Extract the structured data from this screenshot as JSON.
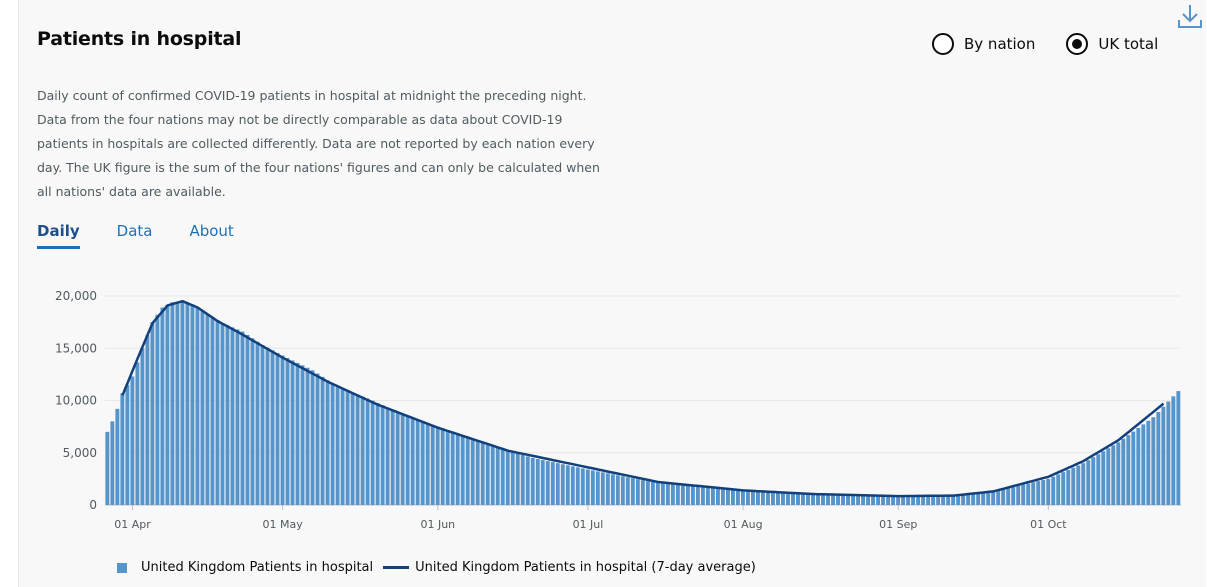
{
  "header": {
    "title": "Patients in hospital",
    "description": "Daily count of confirmed COVID-19 patients in hospital at midnight the preceding night. Data from the four nations may not be directly comparable as data about COVID-19 patients in hospitals are collected differently. Data are not reported by each nation every day. The UK figure is the sum of the four nations' figures and can only be calculated when all nations' data are available."
  },
  "radios": {
    "by_nation": "By nation",
    "uk_total": "UK total",
    "selected": "uk_total"
  },
  "tabs": [
    {
      "label": "Daily",
      "active": true
    },
    {
      "label": "Data",
      "active": false
    },
    {
      "label": "About",
      "active": false
    }
  ],
  "icons": {
    "download": "download-icon"
  },
  "colors": {
    "bar": "#5694ca",
    "line": "#12407c",
    "link": "#1d70b8",
    "grid": "#e8e8e8"
  },
  "chart_data": {
    "type": "bar",
    "start_date": "2020-03-27",
    "end_date": "2020-10-27",
    "ylim": [
      0,
      20000
    ],
    "y_ticks": [
      0,
      5000,
      10000,
      15000,
      20000
    ],
    "y_tick_labels": [
      "0",
      "5,000",
      "10,000",
      "15,000",
      "20,000"
    ],
    "x_ticks": [
      {
        "date": "2020-04-01",
        "label": "01 Apr"
      },
      {
        "date": "2020-05-01",
        "label": "01 May"
      },
      {
        "date": "2020-06-01",
        "label": "01 Jun"
      },
      {
        "date": "2020-07-01",
        "label": "01 Jul"
      },
      {
        "date": "2020-08-01",
        "label": "01 Aug"
      },
      {
        "date": "2020-09-01",
        "label": "01 Sep"
      },
      {
        "date": "2020-10-01",
        "label": "01 Oct"
      }
    ],
    "series": [
      {
        "name": "United Kingdom Patients in hospital",
        "kind": "bar",
        "anchors": [
          [
            "2020-03-27",
            7000
          ],
          [
            "2020-03-28",
            8000
          ],
          [
            "2020-03-29",
            9200
          ],
          [
            "2020-03-30",
            10700
          ],
          [
            "2020-04-01",
            12300
          ],
          [
            "2020-04-03",
            15000
          ],
          [
            "2020-04-05",
            17500
          ],
          [
            "2020-04-07",
            18900
          ],
          [
            "2020-04-09",
            19400
          ],
          [
            "2020-04-11",
            19500
          ],
          [
            "2020-04-13",
            19200
          ],
          [
            "2020-04-15",
            18600
          ],
          [
            "2020-04-19",
            17400
          ],
          [
            "2020-04-23",
            16600
          ],
          [
            "2020-04-27",
            15300
          ],
          [
            "2020-05-01",
            14300
          ],
          [
            "2020-05-07",
            12900
          ],
          [
            "2020-05-12",
            11300
          ],
          [
            "2020-05-18",
            10200
          ],
          [
            "2020-05-24",
            8900
          ],
          [
            "2020-06-01",
            7500
          ],
          [
            "2020-06-10",
            6000
          ],
          [
            "2020-06-20",
            4500
          ],
          [
            "2020-07-01",
            3400
          ],
          [
            "2020-07-15",
            2100
          ],
          [
            "2020-08-01",
            1300
          ],
          [
            "2020-08-15",
            1050
          ],
          [
            "2020-09-01",
            850
          ],
          [
            "2020-09-12",
            900
          ],
          [
            "2020-09-20",
            1300
          ],
          [
            "2020-10-01",
            2500
          ],
          [
            "2020-10-08",
            4000
          ],
          [
            "2020-10-15",
            6000
          ],
          [
            "2020-10-22",
            8400
          ],
          [
            "2020-10-27",
            10900
          ]
        ]
      },
      {
        "name": "United Kingdom Patients in hospital (7-day average)",
        "kind": "line",
        "anchors": [
          [
            "2020-03-30",
            10500
          ],
          [
            "2020-04-02",
            14000
          ],
          [
            "2020-04-05",
            17400
          ],
          [
            "2020-04-08",
            19100
          ],
          [
            "2020-04-11",
            19500
          ],
          [
            "2020-04-14",
            18900
          ],
          [
            "2020-04-18",
            17600
          ],
          [
            "2020-04-23",
            16300
          ],
          [
            "2020-05-01",
            14100
          ],
          [
            "2020-05-10",
            11800
          ],
          [
            "2020-05-20",
            9600
          ],
          [
            "2020-06-01",
            7400
          ],
          [
            "2020-06-15",
            5200
          ],
          [
            "2020-07-01",
            3600
          ],
          [
            "2020-07-15",
            2200
          ],
          [
            "2020-08-01",
            1400
          ],
          [
            "2020-08-15",
            1050
          ],
          [
            "2020-09-01",
            850
          ],
          [
            "2020-09-12",
            900
          ],
          [
            "2020-09-20",
            1300
          ],
          [
            "2020-10-01",
            2700
          ],
          [
            "2020-10-08",
            4200
          ],
          [
            "2020-10-15",
            6200
          ],
          [
            "2020-10-24",
            9700
          ]
        ]
      }
    ]
  }
}
